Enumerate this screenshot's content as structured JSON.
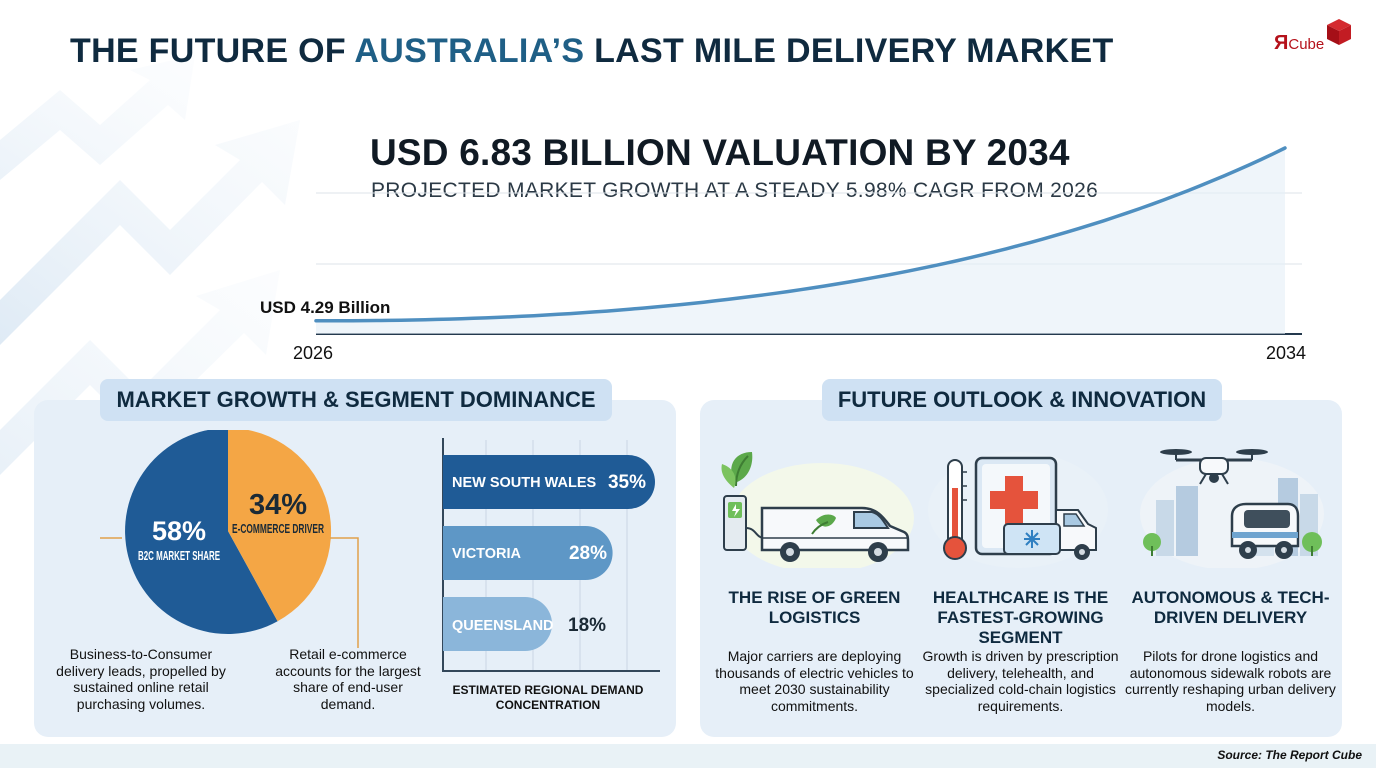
{
  "header": {
    "title_part1": "THE FUTURE OF ",
    "title_accent": "AUSTRALIA’S",
    "title_part2": " LAST MILE DELIVERY MARKET",
    "brand": {
      "glyph": "Я",
      "name": "Cube",
      "accent_color": "#b5121b"
    }
  },
  "colors": {
    "navy": "#1f5b96",
    "orange": "#f4a645",
    "curve": "#4f8fc0",
    "region_dark": "#1f5b96",
    "region_mid": "#5e97c6",
    "region_light": "#8bb6da",
    "panel_bg": "#e6eff8",
    "tag_bg": "#cfe1f3"
  },
  "chart_data": [
    {
      "type": "line",
      "title": "USD 6.83 BILLION VALUATION BY 2034",
      "subtitle": "PROJECTED MARKET GROWTH AT A STEADY 5.98% CAGR FROM 2026",
      "x": [
        2026,
        2034
      ],
      "x_tick_labels": [
        "2026",
        "2034"
      ],
      "series": [
        {
          "name": "",
          "start_value": 4.29,
          "end_value": 6.83,
          "start_label": "USD 4.29 Billion",
          "cagr_percent": 5.98
        }
      ],
      "ylim": [
        4.0,
        7.0
      ],
      "grid": true,
      "legend": "none"
    },
    {
      "type": "pie",
      "slices": [
        {
          "label": "B2C MARKET SHARE",
          "value": 58,
          "value_label": "58%",
          "color": "#1f5b96"
        },
        {
          "label": "E-COMMERCE DRIVER",
          "value": 34,
          "value_label": "34%",
          "color": "#f4a645"
        }
      ],
      "descriptions": [
        "Business-to-Consumer delivery leads, propelled by sustained online retail purchasing volumes.",
        "Retail e-commerce accounts for the largest share of end-user demand."
      ]
    },
    {
      "type": "bar",
      "orientation": "horizontal",
      "categories": [
        "NEW SOUTH WALES",
        "VICTORIA",
        "QUEENSLAND"
      ],
      "values": [
        35,
        28,
        18
      ],
      "value_labels": [
        "35%",
        "28%",
        "18%"
      ],
      "caption": "ESTIMATED REGIONAL DEMAND CONCENTRATION",
      "xlim": [
        0,
        35
      ],
      "grid": true
    }
  ],
  "sections": {
    "left_tag": "MARKET GROWTH & SEGMENT DOMINANCE",
    "right_tag": "FUTURE OUTLOOK & INNOVATION"
  },
  "outlook": [
    {
      "icon": "electric-van-icon",
      "title": "THE RISE OF GREEN LOGISTICS",
      "description": "Major carriers are deploying thousands of electric vehicles to meet 2030 sustainability commitments."
    },
    {
      "icon": "medical-delivery-icon",
      "title": "HEALTHCARE IS THE FASTEST-GROWING SEGMENT",
      "description": "Growth is driven by prescription delivery, telehealth, and specialized cold-chain logistics requirements."
    },
    {
      "icon": "drone-robot-icon",
      "title": "AUTONOMOUS & TECH-DRIVEN DELIVERY",
      "description": "Pilots for drone logistics and autonomous sidewalk robots are currently reshaping urban delivery models."
    }
  ],
  "footer": {
    "source": "Source: The Report Cube"
  }
}
